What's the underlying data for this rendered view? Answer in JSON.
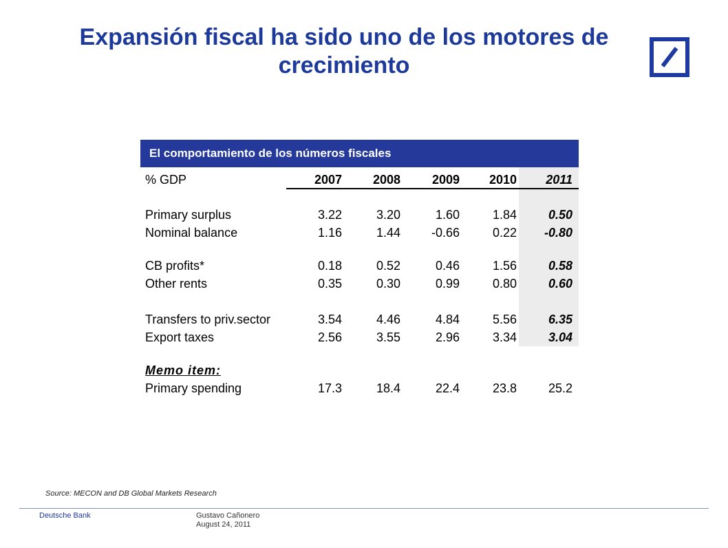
{
  "title": "Expansión fiscal ha sido uno de los motores de crecimiento",
  "brand": {
    "logo_label": "Deutsche Bank",
    "color": "#1e3aa0"
  },
  "table": {
    "header": "El comportamiento de los números fiscales",
    "unit_label": "% GDP",
    "years": [
      "2007",
      "2008",
      "2009",
      "2010",
      "2011"
    ],
    "rows": [
      {
        "label": "Primary surplus",
        "values": [
          "3.22",
          "3.20",
          "1.60",
          "1.84",
          "0.50"
        ]
      },
      {
        "label": "Nominal balance",
        "values": [
          "1.16",
          "1.44",
          "-0.66",
          "0.22",
          "-0.80"
        ]
      },
      {
        "label": "CB profits*",
        "values": [
          "0.18",
          "0.52",
          "0.46",
          "1.56",
          "0.58"
        ]
      },
      {
        "label": "Other rents",
        "values": [
          "0.35",
          "0.30",
          "0.99",
          "0.80",
          "0.60"
        ]
      },
      {
        "label": "Transfers to priv.sector",
        "values": [
          "3.54",
          "4.46",
          "4.84",
          "5.56",
          "6.35"
        ]
      },
      {
        "label": "Export taxes",
        "values": [
          "2.56",
          "3.55",
          "2.96",
          "3.34",
          "3.04"
        ]
      }
    ],
    "memo_label": "Memo item:",
    "memo_row": {
      "label": "Primary spending",
      "values": [
        "17.3",
        "18.4",
        "22.4",
        "23.8",
        "25.2"
      ]
    },
    "highlight_color": "#ececec",
    "header_color": "#24399a"
  },
  "source": "Source: MECON and DB Global Markets Research",
  "footer": {
    "company": "Deutsche Bank",
    "author": "Gustavo Cañonero",
    "date": "August 24, 2011"
  }
}
